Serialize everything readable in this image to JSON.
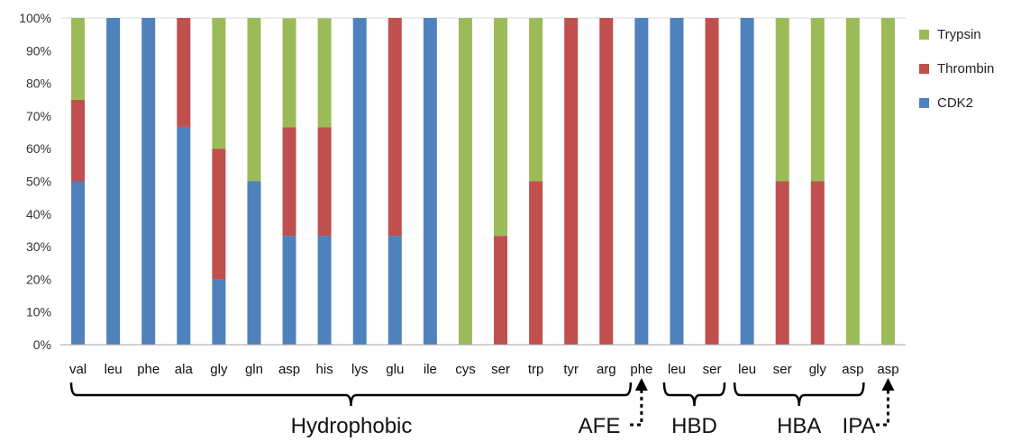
{
  "chart_data": {
    "type": "bar",
    "stacked": true,
    "categories": [
      "val",
      "leu",
      "phe",
      "ala",
      "gly",
      "gln",
      "asp",
      "his",
      "lys",
      "glu",
      "ile",
      "cys",
      "ser",
      "trp",
      "tyr",
      "arg",
      "phe",
      "leu",
      "ser",
      "leu",
      "ser",
      "gly",
      "asp",
      "asp"
    ],
    "series": [
      {
        "name": "CDK2",
        "color": "#4F81BD",
        "values": [
          50,
          100,
          100,
          66.7,
          20,
          50,
          33.3,
          33.3,
          100,
          33.3,
          100,
          0,
          0,
          0,
          0,
          0,
          100,
          100,
          0,
          100,
          0,
          0,
          0,
          0
        ]
      },
      {
        "name": "Thrombin",
        "color": "#C0504D",
        "values": [
          25,
          0,
          0,
          33.3,
          40,
          0,
          33.3,
          33.3,
          0,
          66.7,
          0,
          0,
          33.3,
          50,
          100,
          100,
          0,
          0,
          100,
          0,
          50,
          50,
          0,
          0
        ]
      },
      {
        "name": "Trypsin",
        "color": "#9BBB59",
        "values": [
          25,
          0,
          0,
          0,
          40,
          50,
          33.3,
          33.3,
          0,
          0,
          0,
          100,
          66.7,
          50,
          0,
          0,
          0,
          0,
          0,
          0,
          50,
          50,
          100,
          100
        ]
      }
    ],
    "y_tick_labels": [
      "0%",
      "10%",
      "20%",
      "30%",
      "40%",
      "50%",
      "60%",
      "70%",
      "80%",
      "90%",
      "100%"
    ],
    "ylim": [
      0,
      100
    ],
    "legend": {
      "position": "right",
      "order": [
        "Trypsin",
        "Thrombin",
        "CDK2"
      ]
    },
    "groups": [
      {
        "label": "Hydrophobic",
        "from": 0,
        "to": 16
      },
      {
        "label": "AFE",
        "from": 16,
        "to": 16
      },
      {
        "label": "HBD",
        "from": 17,
        "to": 18
      },
      {
        "label": "HBA",
        "from": 19,
        "to": 22
      },
      {
        "label": "IPA",
        "from": 23,
        "to": 23
      }
    ]
  }
}
